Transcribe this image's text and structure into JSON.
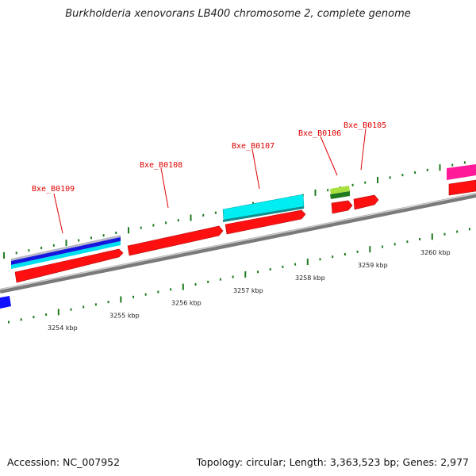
{
  "title": "Burkholderia xenovorans LB400 chromosome 2, complete genome",
  "footer": {
    "accession": "Accession: NC_007952",
    "summary": "Topology: circular; Length: 3,363,523 bp; Genes: 2,977"
  },
  "colors": {
    "cds": "#ff1010",
    "backbone": "#8c8c8c",
    "tick": "#1e7a1e",
    "label": "#e00000",
    "cyan": "#00e5ee",
    "blue": "#1010ff",
    "magenta": "#ff1493",
    "light_green": "#9acd32",
    "dark_green": "#228b22",
    "gray": "#b4b4c0"
  },
  "scale_labels": [
    "3254 kbp",
    "3255 kbp",
    "3256 kbp",
    "3257 kbp",
    "3258 kbp",
    "3259 kbp",
    "3260 kbp"
  ],
  "gene_labels": [
    "Bxe_B0109",
    "Bxe_B0108",
    "Bxe_B0107",
    "Bxe_B0106",
    "Bxe_B0105"
  ]
}
